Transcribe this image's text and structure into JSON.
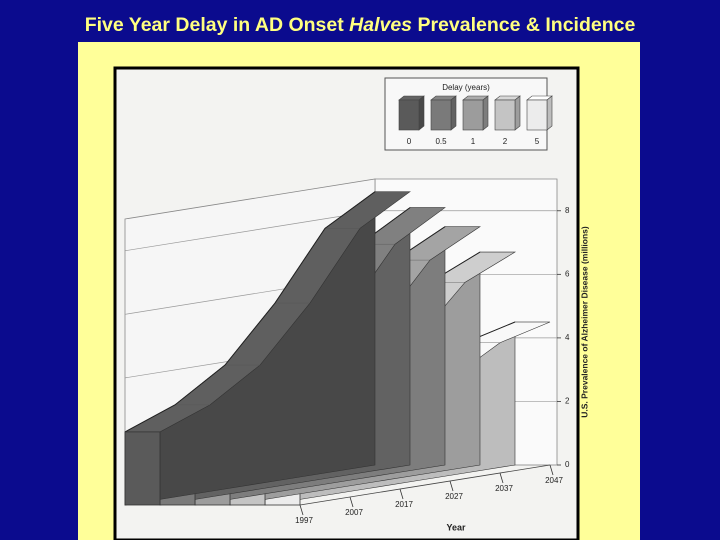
{
  "chart_data": {
    "type": "ribbon3d",
    "title_parts": [
      "Five Year Delay in AD Onset ",
      "Halves",
      " Prevalence & Incidence"
    ],
    "legend_title": "Delay (years)",
    "x_label": "Year",
    "y_label": "U.S. Prevalence of Alzheimer Disease (millions)",
    "x": [
      1997,
      2007,
      2017,
      2027,
      2037,
      2047
    ],
    "xlim": [
      1997,
      2047
    ],
    "ylim": [
      0,
      9
    ],
    "yticks": [
      0,
      2,
      4,
      6,
      8
    ],
    "grid": true,
    "series": [
      {
        "name": "0",
        "color": "#5a5a5a",
        "values": [
          2.3,
          2.9,
          3.9,
          5.6,
          7.7,
          8.6
        ]
      },
      {
        "name": "0.5",
        "color": "#7a7a7a",
        "values": [
          2.3,
          2.8,
          3.7,
          5.2,
          7.2,
          8.1
        ]
      },
      {
        "name": "1",
        "color": "#9c9c9c",
        "values": [
          2.3,
          2.7,
          3.5,
          4.9,
          6.7,
          7.5
        ]
      },
      {
        "name": "2",
        "color": "#c4c4c4",
        "values": [
          2.3,
          2.5,
          3.2,
          4.4,
          6.0,
          6.7
        ]
      },
      {
        "name": "5",
        "color": "#ececec",
        "values": [
          2.3,
          2.1,
          2.5,
          3.2,
          4.1,
          4.5
        ]
      }
    ]
  }
}
